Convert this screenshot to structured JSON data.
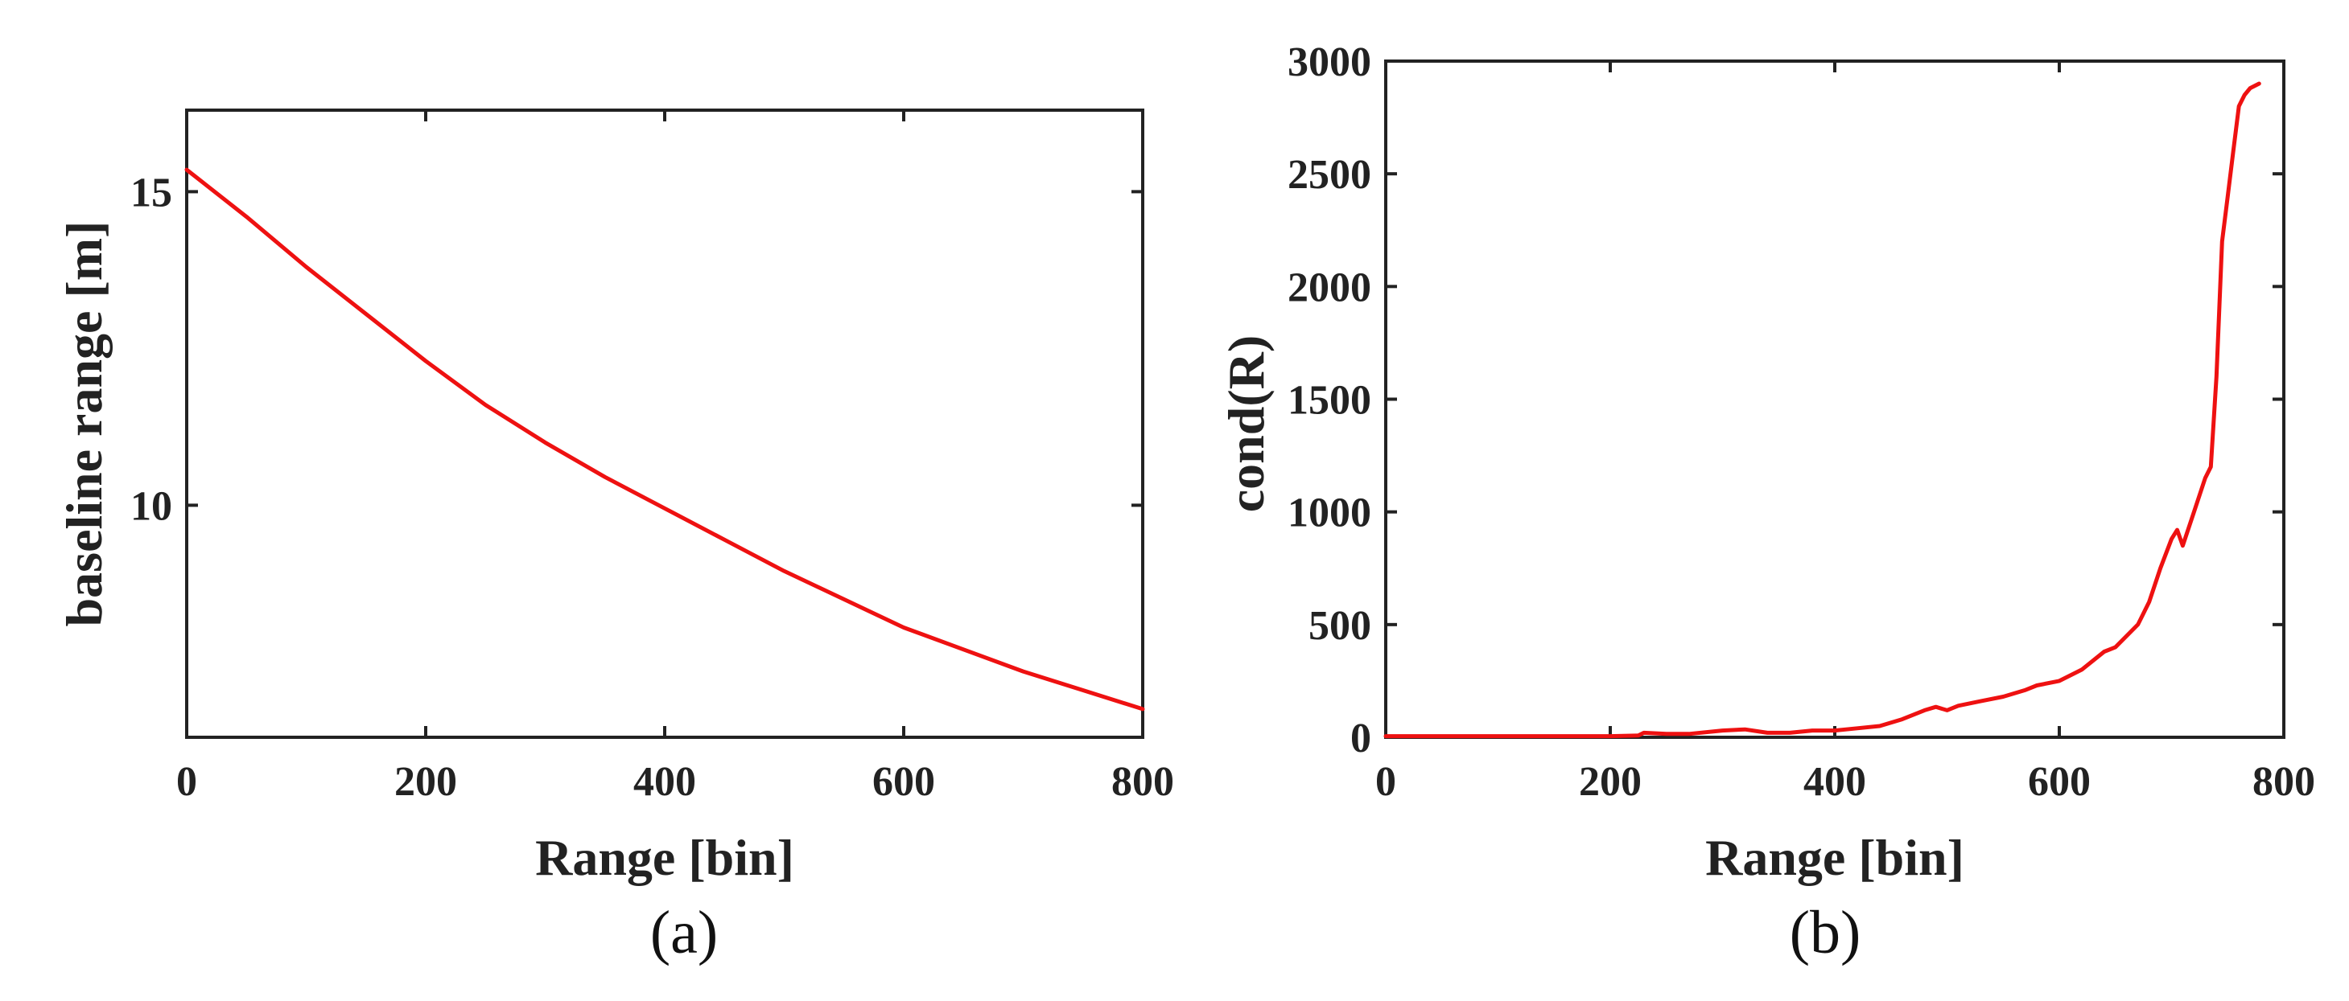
{
  "colors": {
    "line": "#ee1111",
    "axis": "#222222"
  },
  "chart_data": [
    {
      "type": "line",
      "title": "",
      "panel_label": "(a)",
      "xlabel": "Range [bin]",
      "ylabel": "baseline range [m]",
      "xlim": [
        0,
        800
      ],
      "ylim": [
        6.3,
        16.3
      ],
      "xticks": [
        0,
        200,
        400,
        600,
        800
      ],
      "yticks": [
        10,
        15
      ],
      "grid": false,
      "series": [
        {
          "x": [
            0,
            50,
            100,
            150,
            200,
            250,
            300,
            350,
            400,
            450,
            500,
            550,
            600,
            650,
            700,
            750,
            800
          ],
          "values": [
            15.35,
            14.6,
            13.8,
            13.05,
            12.3,
            11.6,
            11.0,
            10.45,
            9.95,
            9.45,
            8.95,
            8.5,
            8.05,
            7.7,
            7.35,
            7.05,
            6.75
          ]
        }
      ]
    },
    {
      "type": "line",
      "title": "",
      "panel_label": "(b)",
      "xlabel": "Range [bin]",
      "ylabel": "cond(R)",
      "xlim": [
        0,
        800
      ],
      "ylim": [
        0,
        3000
      ],
      "xticks": [
        0,
        200,
        400,
        600,
        800
      ],
      "yticks": [
        0,
        500,
        1000,
        1500,
        2000,
        2500,
        3000
      ],
      "grid": false,
      "series": [
        {
          "x": [
            0,
            100,
            200,
            225,
            230,
            250,
            270,
            300,
            320,
            340,
            360,
            380,
            400,
            420,
            440,
            460,
            480,
            490,
            500,
            510,
            530,
            550,
            570,
            580,
            600,
            620,
            640,
            650,
            660,
            670,
            680,
            690,
            700,
            705,
            710,
            720,
            730,
            735,
            740,
            745,
            750,
            755,
            760,
            765,
            770,
            778
          ],
          "values": [
            5,
            5,
            5,
            8,
            20,
            15,
            15,
            30,
            35,
            20,
            20,
            30,
            30,
            40,
            50,
            80,
            120,
            135,
            120,
            140,
            160,
            180,
            210,
            230,
            250,
            300,
            380,
            400,
            450,
            500,
            600,
            750,
            880,
            920,
            850,
            1000,
            1150,
            1200,
            1600,
            2200,
            2400,
            2600,
            2800,
            2850,
            2880,
            2900
          ]
        }
      ]
    }
  ]
}
